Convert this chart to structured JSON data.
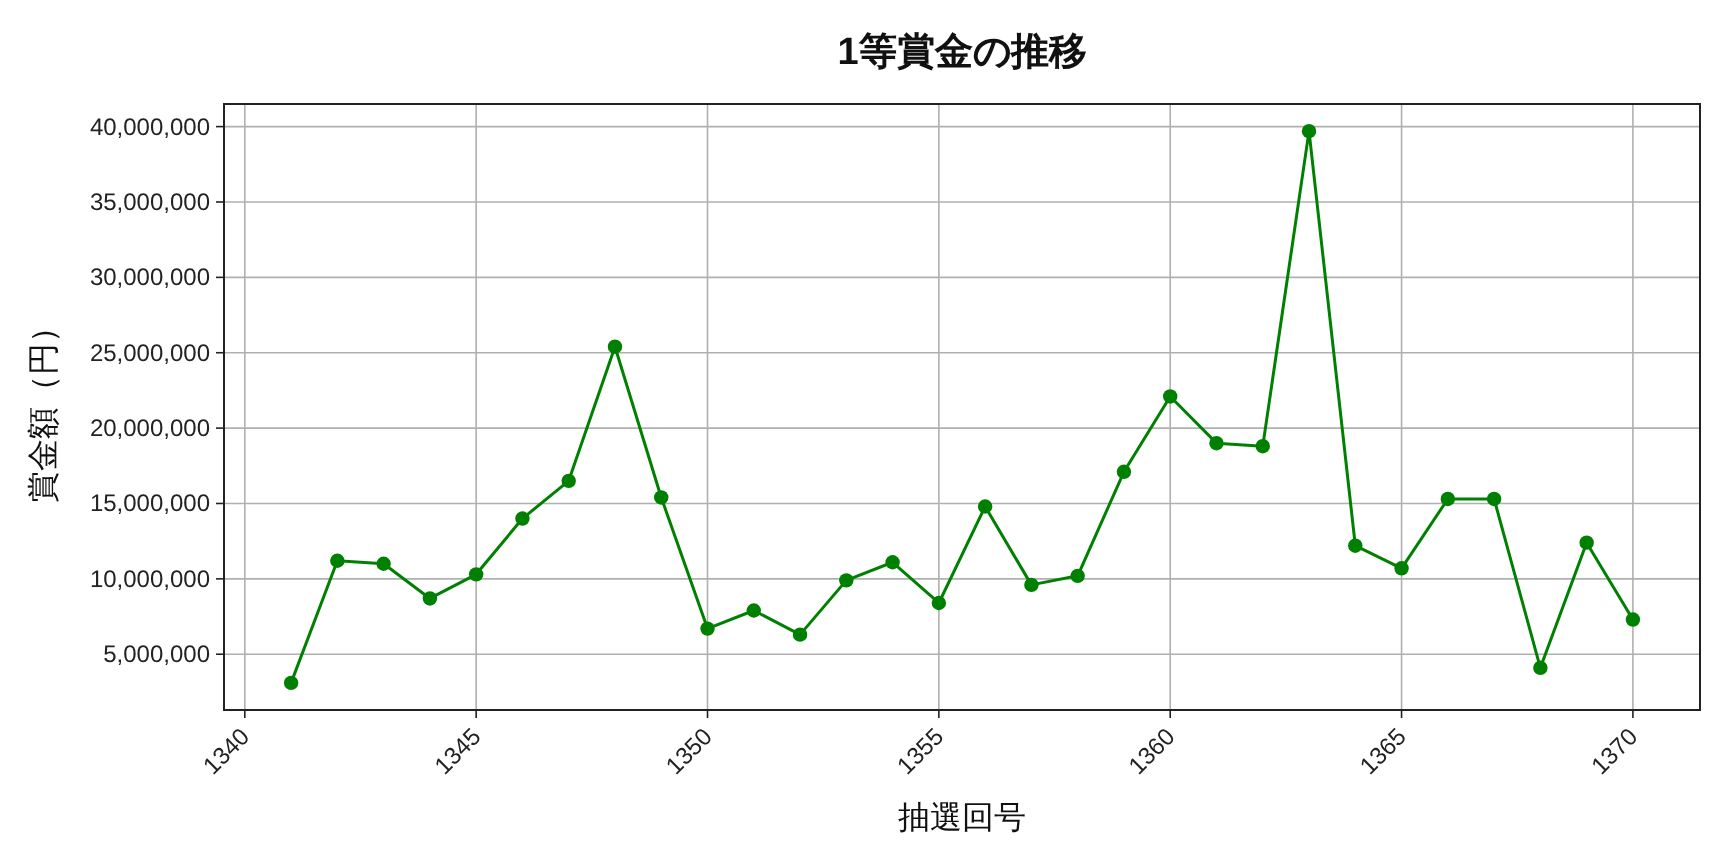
{
  "chart_data": {
    "type": "line",
    "title": "1等賞金の推移",
    "xlabel": "抽選回号",
    "ylabel": "賞金額（円）",
    "x": [
      1341,
      1342,
      1343,
      1344,
      1345,
      1346,
      1347,
      1348,
      1349,
      1350,
      1351,
      1352,
      1353,
      1354,
      1355,
      1356,
      1357,
      1358,
      1359,
      1360,
      1361,
      1362,
      1363,
      1364,
      1365,
      1366,
      1367,
      1368,
      1369,
      1370
    ],
    "series": [
      {
        "color": "#008000",
        "values": [
          3100000,
          11200000,
          11000000,
          8700000,
          10300000,
          14000000,
          16500000,
          25400000,
          15400000,
          6700000,
          7900000,
          6300000,
          9900000,
          11100000,
          8400000,
          14800000,
          9600000,
          10200000,
          17100000,
          22100000,
          19000000,
          18800000,
          39700000,
          12200000,
          10700000,
          15300000,
          15300000,
          4100000,
          12400000,
          7300000
        ]
      }
    ],
    "xlim": [
      1339.55,
      1371.45
    ],
    "ylim": [
      1300000,
      41500000
    ],
    "xticks": [
      1340,
      1345,
      1350,
      1355,
      1360,
      1365,
      1370
    ],
    "yticks": [
      {
        "value": 5000000,
        "label": "5,000,000"
      },
      {
        "value": 10000000,
        "label": "10,000,000"
      },
      {
        "value": 15000000,
        "label": "15,000,000"
      },
      {
        "value": 20000000,
        "label": "20,000,000"
      },
      {
        "value": 25000000,
        "label": "25,000,000"
      },
      {
        "value": 30000000,
        "label": "30,000,000"
      },
      {
        "value": 35000000,
        "label": "35,000,000"
      },
      {
        "value": 40000000,
        "label": "40,000,000"
      }
    ],
    "grid": true,
    "marker": "circle",
    "line_style": "solid"
  }
}
